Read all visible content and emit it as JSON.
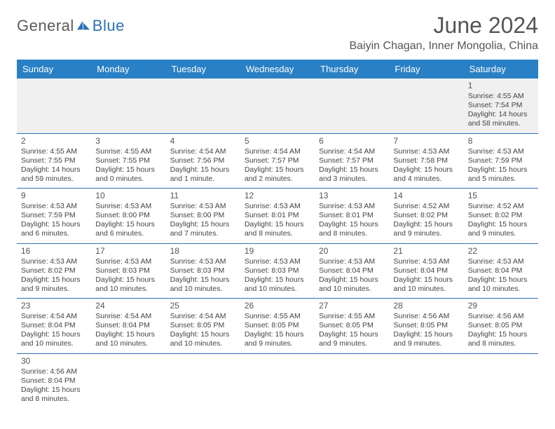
{
  "brand": {
    "part1": "General",
    "part2": "Blue"
  },
  "title": "June 2024",
  "location": "Baiyin Chagan, Inner Mongolia, China",
  "colors": {
    "header_bg": "#2a80c4",
    "header_text": "#ffffff",
    "border": "#2a71b8",
    "brand_gray": "#5a5a5a",
    "brand_blue": "#2a71b8",
    "text": "#444444",
    "week1_bg": "#f0f0f0"
  },
  "typography": {
    "title_fontsize": 32,
    "location_fontsize": 16,
    "dayhead_fontsize": 13,
    "cell_fontsize": 10.5
  },
  "day_names": [
    "Sunday",
    "Monday",
    "Tuesday",
    "Wednesday",
    "Thursday",
    "Friday",
    "Saturday"
  ],
  "labels": {
    "sunrise": "Sunrise:",
    "sunset": "Sunset:",
    "daylight_prefix": "Daylight:"
  },
  "weeks": [
    [
      null,
      null,
      null,
      null,
      null,
      null,
      {
        "n": 1,
        "rise": "4:55 AM",
        "set": "7:54 PM",
        "dl": "14 hours and 58 minutes."
      }
    ],
    [
      {
        "n": 2,
        "rise": "4:55 AM",
        "set": "7:55 PM",
        "dl": "14 hours and 59 minutes."
      },
      {
        "n": 3,
        "rise": "4:55 AM",
        "set": "7:55 PM",
        "dl": "15 hours and 0 minutes."
      },
      {
        "n": 4,
        "rise": "4:54 AM",
        "set": "7:56 PM",
        "dl": "15 hours and 1 minute."
      },
      {
        "n": 5,
        "rise": "4:54 AM",
        "set": "7:57 PM",
        "dl": "15 hours and 2 minutes."
      },
      {
        "n": 6,
        "rise": "4:54 AM",
        "set": "7:57 PM",
        "dl": "15 hours and 3 minutes."
      },
      {
        "n": 7,
        "rise": "4:53 AM",
        "set": "7:58 PM",
        "dl": "15 hours and 4 minutes."
      },
      {
        "n": 8,
        "rise": "4:53 AM",
        "set": "7:59 PM",
        "dl": "15 hours and 5 minutes."
      }
    ],
    [
      {
        "n": 9,
        "rise": "4:53 AM",
        "set": "7:59 PM",
        "dl": "15 hours and 6 minutes."
      },
      {
        "n": 10,
        "rise": "4:53 AM",
        "set": "8:00 PM",
        "dl": "15 hours and 6 minutes."
      },
      {
        "n": 11,
        "rise": "4:53 AM",
        "set": "8:00 PM",
        "dl": "15 hours and 7 minutes."
      },
      {
        "n": 12,
        "rise": "4:53 AM",
        "set": "8:01 PM",
        "dl": "15 hours and 8 minutes."
      },
      {
        "n": 13,
        "rise": "4:53 AM",
        "set": "8:01 PM",
        "dl": "15 hours and 8 minutes."
      },
      {
        "n": 14,
        "rise": "4:52 AM",
        "set": "8:02 PM",
        "dl": "15 hours and 9 minutes."
      },
      {
        "n": 15,
        "rise": "4:52 AM",
        "set": "8:02 PM",
        "dl": "15 hours and 9 minutes."
      }
    ],
    [
      {
        "n": 16,
        "rise": "4:53 AM",
        "set": "8:02 PM",
        "dl": "15 hours and 9 minutes."
      },
      {
        "n": 17,
        "rise": "4:53 AM",
        "set": "8:03 PM",
        "dl": "15 hours and 10 minutes."
      },
      {
        "n": 18,
        "rise": "4:53 AM",
        "set": "8:03 PM",
        "dl": "15 hours and 10 minutes."
      },
      {
        "n": 19,
        "rise": "4:53 AM",
        "set": "8:03 PM",
        "dl": "15 hours and 10 minutes."
      },
      {
        "n": 20,
        "rise": "4:53 AM",
        "set": "8:04 PM",
        "dl": "15 hours and 10 minutes."
      },
      {
        "n": 21,
        "rise": "4:53 AM",
        "set": "8:04 PM",
        "dl": "15 hours and 10 minutes."
      },
      {
        "n": 22,
        "rise": "4:53 AM",
        "set": "8:04 PM",
        "dl": "15 hours and 10 minutes."
      }
    ],
    [
      {
        "n": 23,
        "rise": "4:54 AM",
        "set": "8:04 PM",
        "dl": "15 hours and 10 minutes."
      },
      {
        "n": 24,
        "rise": "4:54 AM",
        "set": "8:04 PM",
        "dl": "15 hours and 10 minutes."
      },
      {
        "n": 25,
        "rise": "4:54 AM",
        "set": "8:05 PM",
        "dl": "15 hours and 10 minutes."
      },
      {
        "n": 26,
        "rise": "4:55 AM",
        "set": "8:05 PM",
        "dl": "15 hours and 9 minutes."
      },
      {
        "n": 27,
        "rise": "4:55 AM",
        "set": "8:05 PM",
        "dl": "15 hours and 9 minutes."
      },
      {
        "n": 28,
        "rise": "4:56 AM",
        "set": "8:05 PM",
        "dl": "15 hours and 9 minutes."
      },
      {
        "n": 29,
        "rise": "4:56 AM",
        "set": "8:05 PM",
        "dl": "15 hours and 8 minutes."
      }
    ],
    [
      {
        "n": 30,
        "rise": "4:56 AM",
        "set": "8:04 PM",
        "dl": "15 hours and 8 minutes."
      },
      null,
      null,
      null,
      null,
      null,
      null
    ]
  ]
}
